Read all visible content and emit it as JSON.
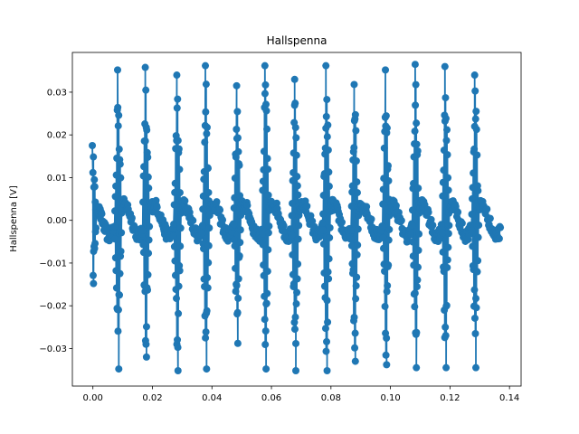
{
  "chart_data": {
    "type": "line",
    "title": "Hallspenna",
    "xlabel": "",
    "ylabel": "Hallspenna [V]",
    "xlim": [
      -0.0069,
      0.1439
    ],
    "ylim": [
      -0.0388,
      0.0393
    ],
    "xticks": [
      0.0,
      0.02,
      0.04,
      0.06,
      0.08,
      0.1,
      0.12,
      0.14
    ],
    "xtick_labels": [
      "0.00",
      "0.02",
      "0.04",
      "0.06",
      "0.08",
      "0.10",
      "0.12",
      "0.14"
    ],
    "yticks": [
      -0.03,
      -0.02,
      -0.01,
      0.0,
      0.01,
      0.02,
      0.03
    ],
    "ytick_labels": [
      "−0.03",
      "−0.02",
      "−0.01",
      "0.00",
      "0.01",
      "0.02",
      "0.03"
    ],
    "grid": false,
    "series": [
      {
        "color": "#1f77b4",
        "marker": "circle",
        "x_range": [
          0.0,
          0.137
        ],
        "pulses": [
          {
            "x": 0.0,
            "max": 0.0175,
            "min": -0.0148
          },
          {
            "x": 0.0085,
            "max": 0.0352,
            "min": -0.0348
          },
          {
            "x": 0.0178,
            "max": 0.0358,
            "min": -0.032
          },
          {
            "x": 0.0284,
            "max": 0.034,
            "min": -0.0352
          },
          {
            "x": 0.038,
            "max": 0.0362,
            "min": -0.0348
          },
          {
            "x": 0.0485,
            "max": 0.0315,
            "min": -0.0288
          },
          {
            "x": 0.058,
            "max": 0.0362,
            "min": -0.0348
          },
          {
            "x": 0.068,
            "max": 0.033,
            "min": -0.0352
          },
          {
            "x": 0.0785,
            "max": 0.0362,
            "min": -0.0352
          },
          {
            "x": 0.088,
            "max": 0.0318,
            "min": -0.033
          },
          {
            "x": 0.0985,
            "max": 0.0352,
            "min": -0.0338
          },
          {
            "x": 0.1085,
            "max": 0.0365,
            "min": -0.0345
          },
          {
            "x": 0.1185,
            "max": 0.036,
            "min": -0.0345
          },
          {
            "x": 0.1285,
            "max": 0.034,
            "min": -0.0345
          }
        ]
      }
    ]
  }
}
